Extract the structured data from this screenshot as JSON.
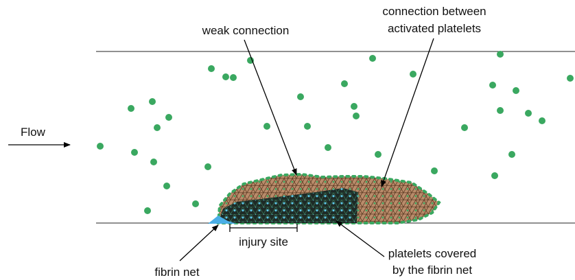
{
  "labels": {
    "flow": "Flow",
    "weak_connection": "weak connection",
    "activated_connection": [
      "connection between",
      "activated platelets"
    ],
    "injury_site": "injury site",
    "fibrin_net": "fibrin net",
    "covered": [
      "platelets covered",
      "by the fibrin net"
    ]
  }
}
